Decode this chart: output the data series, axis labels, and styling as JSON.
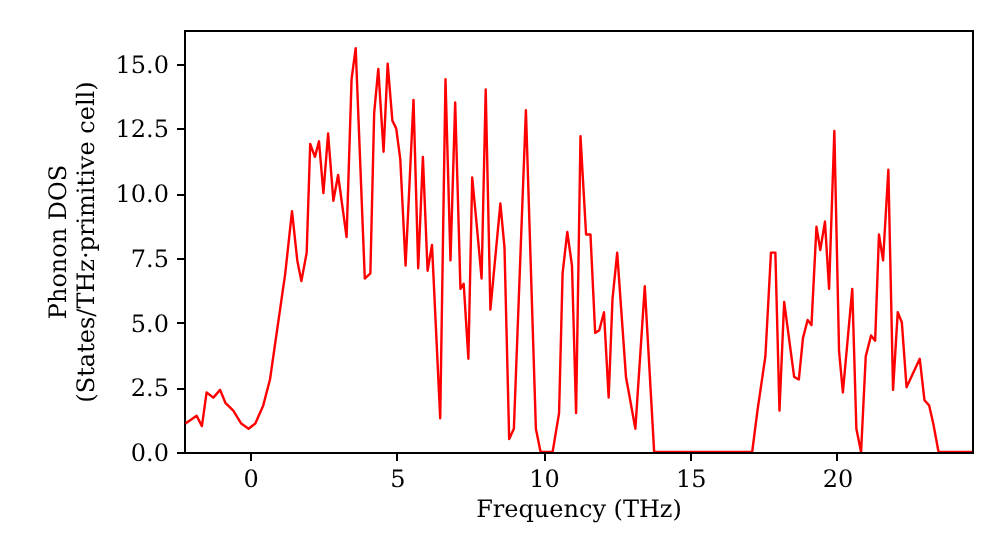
{
  "chart_data": {
    "type": "line",
    "xlabel": "Frequency (THz)",
    "ylabel": "Phonon DOS\n(States/THz·primitive cell)",
    "xlim": [
      -2.25,
      24.6
    ],
    "ylim": [
      0,
      16.3
    ],
    "xticks": [
      0,
      5,
      10,
      15,
      20
    ],
    "yticks": [
      {
        "value": 0,
        "label": "0.0"
      },
      {
        "value": 2.5,
        "label": "2.5"
      },
      {
        "value": 5,
        "label": "5.0"
      },
      {
        "value": 7.5,
        "label": "7.5"
      },
      {
        "value": 10,
        "label": "10.0"
      },
      {
        "value": 12.5,
        "label": "12.5"
      },
      {
        "value": 15,
        "label": "15.0"
      }
    ],
    "grid": false,
    "marker": "none",
    "line_style": "solid",
    "series": [
      {
        "color": "#ff0000",
        "x": [
          -2.2,
          -1.82,
          -1.64,
          -1.48,
          -1.25,
          -1.02,
          -0.84,
          -0.57,
          -0.3,
          -0.05,
          0.18,
          0.45,
          0.68,
          1.2,
          1.43,
          1.61,
          1.75,
          1.93,
          2.05,
          2.21,
          2.35,
          2.5,
          2.66,
          2.84,
          3.0,
          3.29,
          3.46,
          3.6,
          3.91,
          4.1,
          4.23,
          4.37,
          4.55,
          4.69,
          4.85,
          4.98,
          5.12,
          5.3,
          5.57,
          5.73,
          5.89,
          6.05,
          6.2,
          6.48,
          6.66,
          6.83,
          6.99,
          7.17,
          7.28,
          7.44,
          7.57,
          7.73,
          7.89,
          8.03,
          8.19,
          8.53,
          8.67,
          8.83,
          8.99,
          9.4,
          9.74,
          9.9,
          10.31,
          10.53,
          10.65,
          10.81,
          10.97,
          11.11,
          11.26,
          11.45,
          11.6,
          11.76,
          11.9,
          12.06,
          12.22,
          12.35,
          12.51,
          12.81,
          13.13,
          13.45,
          13.77,
          17.11,
          17.29,
          17.56,
          17.75,
          17.9,
          18.04,
          18.2,
          18.54,
          18.7,
          18.84,
          19.0,
          19.13,
          19.3,
          19.43,
          19.59,
          19.73,
          19.91,
          20.07,
          20.2,
          20.52,
          20.66,
          20.82,
          20.98,
          21.16,
          21.3,
          21.43,
          21.57,
          21.75,
          21.91,
          22.07,
          22.21,
          22.37,
          22.82,
          22.98,
          23.14,
          23.28,
          23.46,
          24.6
        ],
        "values": [
          1.1,
          1.4,
          1.0,
          2.3,
          2.1,
          2.4,
          1.9,
          1.6,
          1.1,
          0.9,
          1.1,
          1.8,
          2.8,
          6.9,
          9.3,
          7.4,
          6.6,
          7.7,
          11.9,
          11.4,
          12.0,
          10.0,
          12.3,
          9.7,
          10.7,
          8.3,
          14.4,
          15.6,
          6.7,
          6.9,
          13.1,
          14.8,
          11.6,
          15.0,
          12.8,
          12.5,
          11.3,
          7.2,
          13.6,
          7.1,
          11.4,
          7.0,
          8.0,
          1.3,
          14.4,
          7.4,
          13.5,
          6.3,
          6.5,
          3.6,
          10.6,
          8.7,
          6.7,
          14.0,
          5.5,
          9.6,
          7.9,
          0.5,
          0.9,
          13.2,
          0.9,
          0,
          0,
          1.5,
          6.9,
          8.5,
          7.2,
          1.5,
          12.2,
          8.4,
          8.4,
          4.6,
          4.7,
          5.4,
          2.1,
          5.9,
          7.7,
          2.9,
          0.9,
          6.4,
          0,
          0,
          1.6,
          3.7,
          7.7,
          7.7,
          1.6,
          5.8,
          2.9,
          2.8,
          4.4,
          5.1,
          4.9,
          8.7,
          7.8,
          8.9,
          6.3,
          12.4,
          3.9,
          2.3,
          6.3,
          0.9,
          0,
          3.7,
          4.5,
          4.3,
          8.4,
          7.4,
          10.9,
          2.4,
          5.4,
          5.0,
          2.5,
          3.6,
          2.0,
          1.8,
          1.1,
          0,
          0
        ]
      }
    ]
  }
}
